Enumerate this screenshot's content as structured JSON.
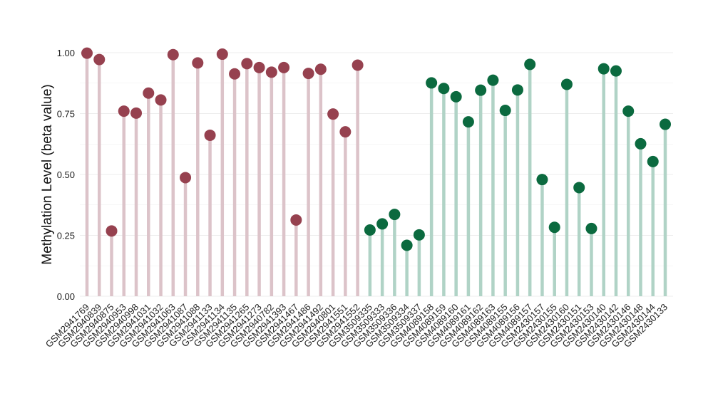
{
  "chart_data": {
    "type": "lollipop",
    "title": "",
    "xlabel": "",
    "ylabel": "Methylation Level (beta value)",
    "ylim": [
      0,
      1.05
    ],
    "y_ticks": [
      "0.00",
      "0.25",
      "0.50",
      "0.75",
      "1.00"
    ],
    "grid": true,
    "legend": "none",
    "colors": {
      "group1_point": "#96414f",
      "group1_stem": "#dcc3c9",
      "group2_point": "#0b6a3f",
      "group2_stem": "#b0d3c6",
      "grid": "#ececec"
    },
    "categories": [
      "GSM2941769",
      "GSM2940839",
      "GSM2940875",
      "GSM2940953",
      "GSM2940998",
      "GSM2941031",
      "GSM2941032",
      "GSM2941063",
      "GSM2941087",
      "GSM2941088",
      "GSM2941133",
      "GSM2941134",
      "GSM2941135",
      "GSM2941265",
      "GSM2941273",
      "GSM2940782",
      "GSM2941393",
      "GSM2941467",
      "GSM2941486",
      "GSM2941492",
      "GSM2940801",
      "GSM2941551",
      "GSM2941552",
      "GSM3509335",
      "GSM3509333",
      "GSM3509336",
      "GSM3509334",
      "GSM3509337",
      "GSM4089158",
      "GSM4089159",
      "GSM4089160",
      "GSM4089161",
      "GSM4089162",
      "GSM4089163",
      "GSM4089155",
      "GSM4089156",
      "GSM4089157",
      "GSM2430157",
      "GSM2430155",
      "GSM2430160",
      "GSM2430151",
      "GSM2430153",
      "GSM2430140",
      "GSM2430142",
      "GSM2430146",
      "GSM2430148",
      "GSM2430144",
      "GSM2430133"
    ],
    "values": [
      0.998,
      0.972,
      0.268,
      0.76,
      0.752,
      0.834,
      0.806,
      0.992,
      0.487,
      0.958,
      0.661,
      0.994,
      0.913,
      0.955,
      0.939,
      0.92,
      0.939,
      0.313,
      0.915,
      0.932,
      0.748,
      0.675,
      0.949,
      0.272,
      0.297,
      0.336,
      0.209,
      0.252,
      0.876,
      0.853,
      0.819,
      0.716,
      0.846,
      0.887,
      0.763,
      0.847,
      0.952,
      0.479,
      0.283,
      0.87,
      0.446,
      0.278,
      0.934,
      0.925,
      0.76,
      0.626,
      0.553,
      0.706
    ],
    "groups": [
      1,
      1,
      1,
      1,
      1,
      1,
      1,
      1,
      1,
      1,
      1,
      1,
      1,
      1,
      1,
      1,
      1,
      1,
      1,
      1,
      1,
      1,
      1,
      2,
      2,
      2,
      2,
      2,
      2,
      2,
      2,
      2,
      2,
      2,
      2,
      2,
      2,
      2,
      2,
      2,
      2,
      2,
      2,
      2,
      2,
      2,
      2,
      2
    ]
  }
}
